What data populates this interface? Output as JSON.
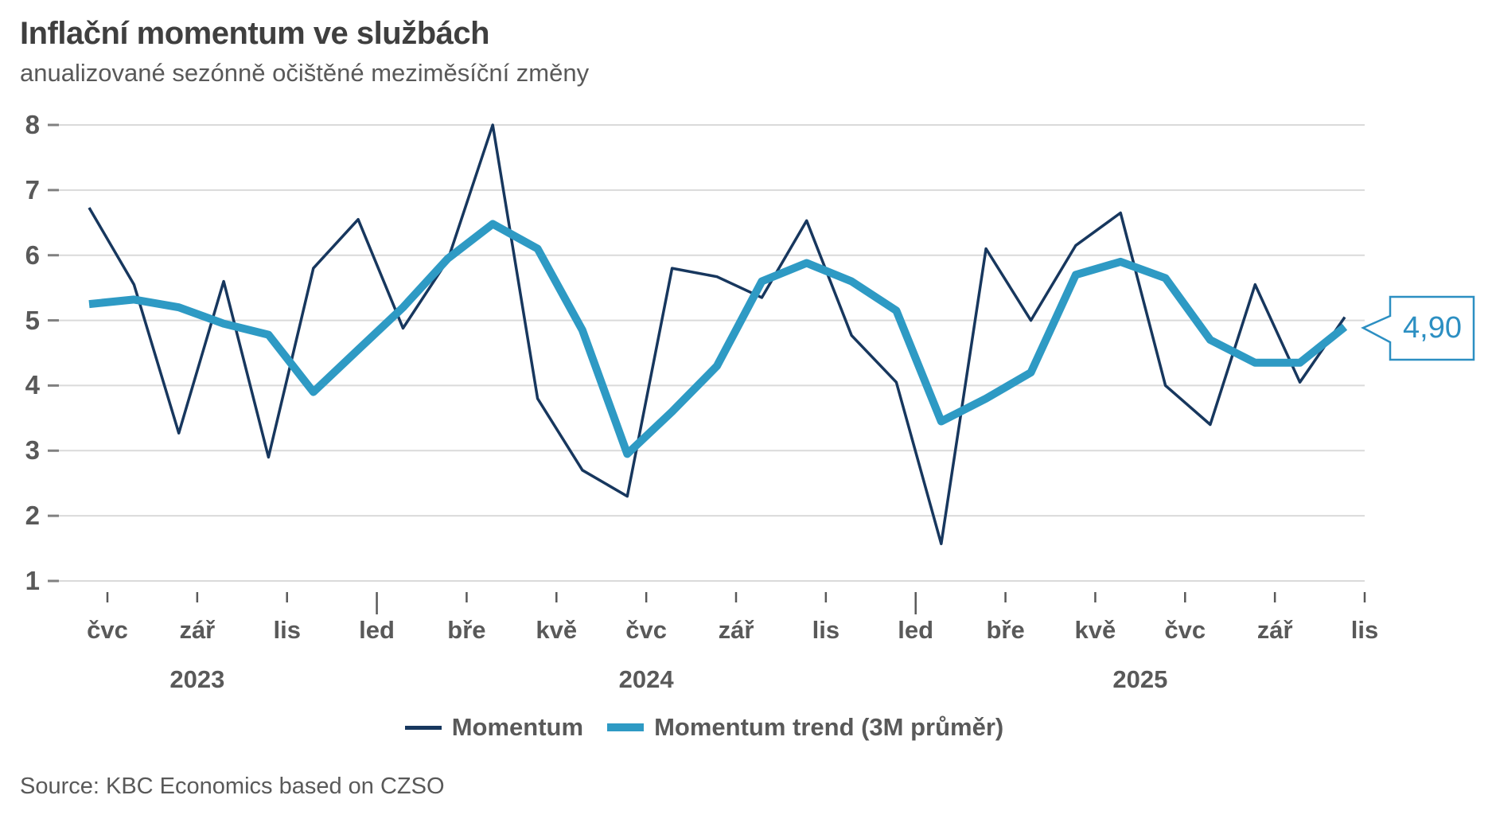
{
  "header": {
    "title": "Inflační momentum ve službách",
    "subtitle": "anualizované sezónně očištěné meziměsíční změny"
  },
  "footer": {
    "source": "Source: KBC Economics based on CZSO"
  },
  "legend": {
    "items": [
      {
        "label": "Momentum"
      },
      {
        "label": "Momentum trend (3M průměr)"
      }
    ]
  },
  "callout": {
    "label": "4,90"
  },
  "colors": {
    "momentum_line": "#17375e",
    "trend_line": "#2e9ac4",
    "callout": "#2c8fc2",
    "grid": "#dadada",
    "grid_accent": "#808080",
    "tick": "#595959",
    "axis_text": "#595959",
    "title_text": "#3f3f3f"
  },
  "chart_data": {
    "type": "line",
    "title": "Inflační momentum ve službách",
    "subtitle": "anualizované sezónně očištěné meziměsíční změny",
    "x_tick_labels": [
      "čvc",
      "zář",
      "lis",
      "led",
      "bře",
      "kvě",
      "čvc",
      "zář",
      "lis",
      "led",
      "bře",
      "kvě",
      "čvc",
      "zář",
      "lis"
    ],
    "year_labels": [
      "2023",
      "2024",
      "2025"
    ],
    "months_span": "čvc 2023 – lis 2025 (29 monthly points, labels every 2nd month)",
    "yticks": [
      8,
      7,
      6,
      5,
      4,
      3,
      2,
      1
    ],
    "ylim": [
      1,
      8
    ],
    "grid": true,
    "legend_position": "bottom",
    "series": [
      {
        "name": "Momentum",
        "values": [
          6.73,
          5.55,
          3.27,
          5.6,
          2.9,
          5.8,
          6.55,
          4.88,
          5.93,
          8.0,
          3.8,
          2.7,
          2.3,
          5.8,
          5.67,
          5.35,
          6.53,
          4.77,
          4.05,
          1.57,
          6.1,
          5.0,
          6.15,
          6.65,
          4.0,
          3.4,
          5.55,
          4.05,
          5.05
        ]
      },
      {
        "name": "Momentum trend (3M průměr)",
        "values": [
          5.25,
          5.32,
          5.2,
          4.95,
          4.78,
          3.9,
          4.55,
          5.2,
          5.95,
          6.48,
          6.1,
          4.85,
          2.95,
          3.6,
          4.3,
          5.6,
          5.88,
          5.6,
          5.15,
          3.45,
          3.8,
          4.2,
          5.7,
          5.9,
          5.65,
          4.7,
          4.35,
          4.35,
          4.9
        ]
      }
    ],
    "last_value_label": "4,90"
  }
}
